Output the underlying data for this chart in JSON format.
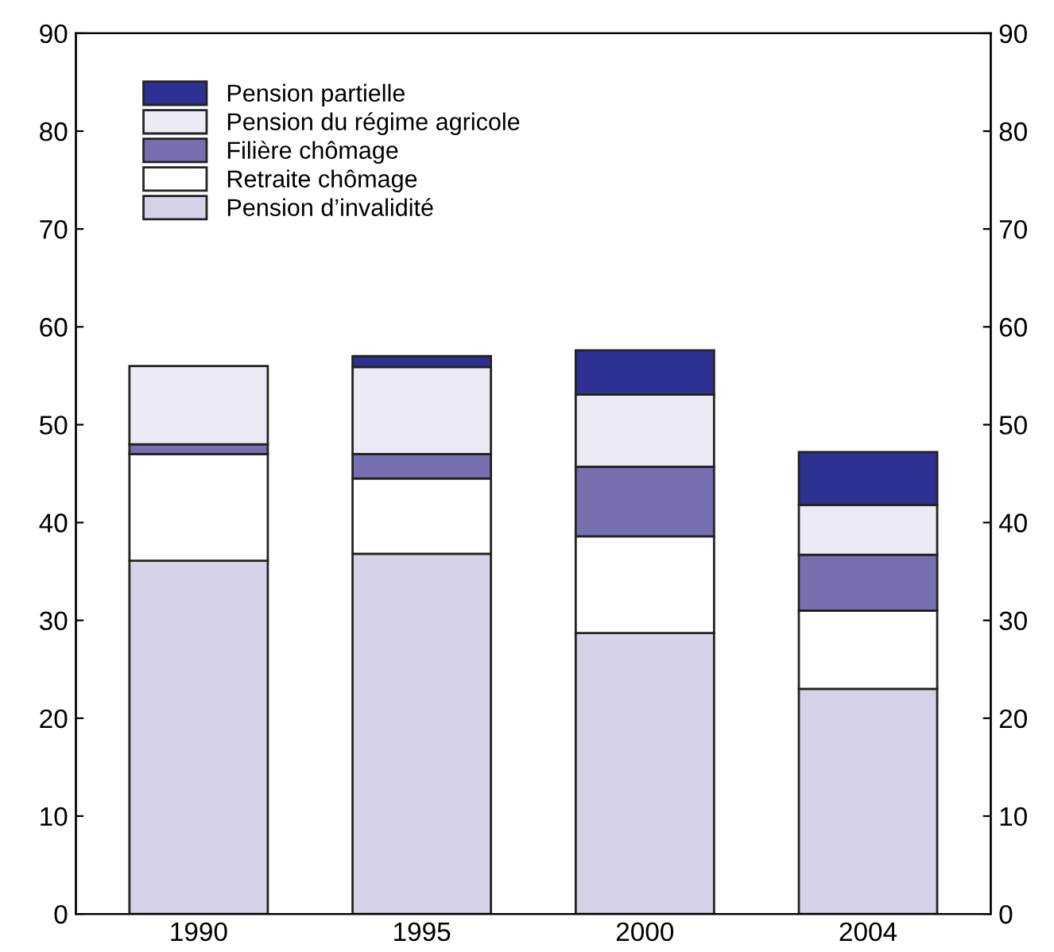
{
  "chart_data": {
    "type": "bar",
    "stacked": true,
    "categories": [
      "1990",
      "1995",
      "2000",
      "2004"
    ],
    "series": [
      {
        "name": "Pension d’invalidité",
        "color": "#d5d3e8",
        "values": [
          36.1,
          36.8,
          28.7,
          23.0
        ]
      },
      {
        "name": "Retraite chômage",
        "color": "#ffffff",
        "values": [
          10.9,
          7.7,
          9.9,
          8.0
        ]
      },
      {
        "name": "Filière chômage",
        "color": "#7670b0",
        "values": [
          1.0,
          2.5,
          7.1,
          5.7
        ]
      },
      {
        "name": "Pension du régime agricole",
        "color": "#ebeaf5",
        "values": [
          8.0,
          8.9,
          7.4,
          5.1
        ]
      },
      {
        "name": "Pension partielle",
        "color": "#2e3192",
        "values": [
          null,
          1.1,
          4.5,
          5.4
        ]
      }
    ],
    "ylim": [
      0,
      90
    ],
    "yticks": [
      0,
      10,
      20,
      30,
      40,
      50,
      60,
      70,
      80,
      90
    ],
    "y2lim": [
      0,
      90
    ],
    "y2ticks": [
      0,
      10,
      20,
      30,
      40,
      50,
      60,
      70,
      80,
      90
    ],
    "grid": false,
    "legend": "top left"
  }
}
